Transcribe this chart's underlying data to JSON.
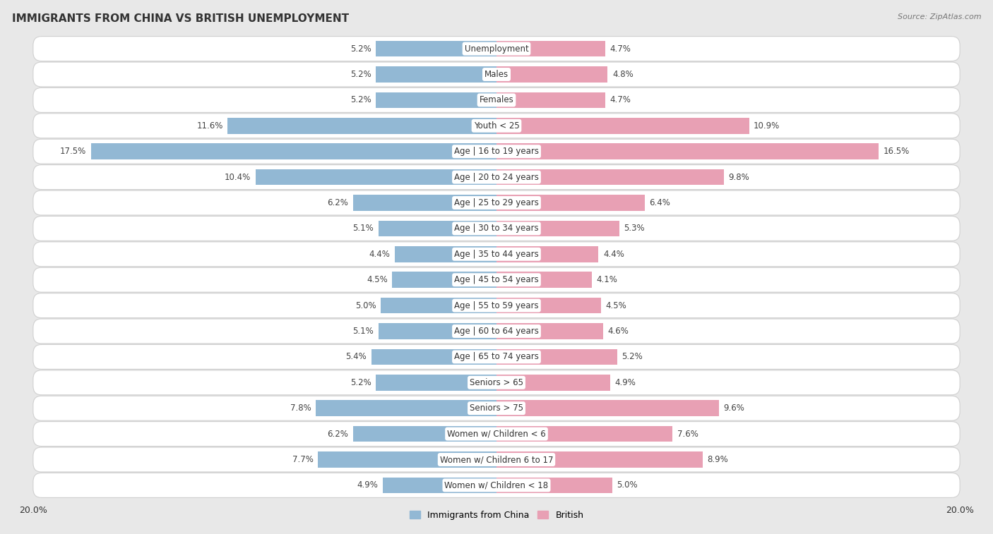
{
  "title": "IMMIGRANTS FROM CHINA VS BRITISH UNEMPLOYMENT",
  "source": "Source: ZipAtlas.com",
  "categories": [
    "Unemployment",
    "Males",
    "Females",
    "Youth < 25",
    "Age | 16 to 19 years",
    "Age | 20 to 24 years",
    "Age | 25 to 29 years",
    "Age | 30 to 34 years",
    "Age | 35 to 44 years",
    "Age | 45 to 54 years",
    "Age | 55 to 59 years",
    "Age | 60 to 64 years",
    "Age | 65 to 74 years",
    "Seniors > 65",
    "Seniors > 75",
    "Women w/ Children < 6",
    "Women w/ Children 6 to 17",
    "Women w/ Children < 18"
  ],
  "china_values": [
    5.2,
    5.2,
    5.2,
    11.6,
    17.5,
    10.4,
    6.2,
    5.1,
    4.4,
    4.5,
    5.0,
    5.1,
    5.4,
    5.2,
    7.8,
    6.2,
    7.7,
    4.9
  ],
  "british_values": [
    4.7,
    4.8,
    4.7,
    10.9,
    16.5,
    9.8,
    6.4,
    5.3,
    4.4,
    4.1,
    4.5,
    4.6,
    5.2,
    4.9,
    9.6,
    7.6,
    8.9,
    5.0
  ],
  "china_color": "#92b8d4",
  "british_color": "#e8a0b4",
  "background_color": "#e8e8e8",
  "row_bg_color": "#ffffff",
  "row_border_color": "#d0d0d0",
  "max_val": 20.0,
  "bar_height": 0.62,
  "legend_china": "Immigrants from China",
  "legend_british": "British",
  "title_fontsize": 11,
  "source_fontsize": 8,
  "label_fontsize": 8.5,
  "cat_fontsize": 8.5,
  "tick_fontsize": 9
}
